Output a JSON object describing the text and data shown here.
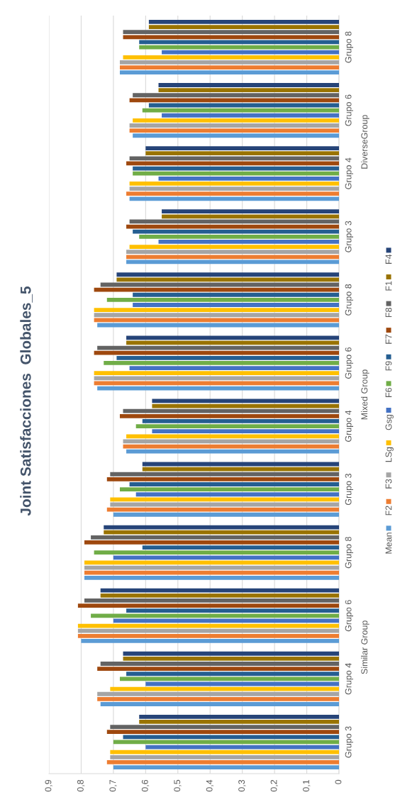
{
  "chart_data": {
    "type": "bar",
    "orientation": "horizontal",
    "title": "Joint Satisfacciones  Globales_5",
    "categories": [
      "Grupo 8",
      "Grupo 6",
      "Grupo 4",
      "Grupo 3",
      "Grupo 8",
      "Grupo 6",
      "Grupo 4",
      "Grupo 3",
      "Grupo 8",
      "Grupo 6",
      "Grupo 4",
      "Grupo 3"
    ],
    "annotations": [
      "DiverseGroup",
      "Mixed Group",
      "Similar Group"
    ],
    "series": [
      {
        "name": "Mean",
        "color": "#5b9bd5",
        "values": [
          0.68,
          0.64,
          0.65,
          0.66,
          0.75,
          0.75,
          0.66,
          0.7,
          0.79,
          0.8,
          0.74,
          0.7
        ]
      },
      {
        "name": "F2",
        "color": "#ed7d31",
        "values": [
          0.68,
          0.65,
          0.66,
          0.66,
          0.76,
          0.76,
          0.67,
          0.72,
          0.79,
          0.81,
          0.75,
          0.72
        ]
      },
      {
        "name": "F3",
        "color": "#a5a5a5",
        "values": [
          0.68,
          0.65,
          0.65,
          0.66,
          0.76,
          0.76,
          0.67,
          0.71,
          0.79,
          0.81,
          0.75,
          0.71
        ]
      },
      {
        "name": "LSg",
        "color": "#ffc000",
        "values": [
          0.67,
          0.64,
          0.65,
          0.65,
          0.76,
          0.76,
          0.66,
          0.71,
          0.79,
          0.81,
          0.71,
          0.71
        ]
      },
      {
        "name": "Gsg",
        "color": "#4472c4",
        "values": [
          0.55,
          0.55,
          0.56,
          0.56,
          0.64,
          0.65,
          0.58,
          0.63,
          0.7,
          0.7,
          0.6,
          0.6
        ]
      },
      {
        "name": "F6",
        "color": "#70ad47",
        "values": [
          0.62,
          0.61,
          0.64,
          0.62,
          0.72,
          0.73,
          0.63,
          0.68,
          0.76,
          0.77,
          0.68,
          0.7
        ]
      },
      {
        "name": "F9",
        "color": "#255e91",
        "values": [
          0.62,
          0.59,
          0.64,
          0.64,
          0.64,
          0.69,
          0.61,
          0.65,
          0.61,
          0.66,
          0.66,
          0.67
        ]
      },
      {
        "name": "F7",
        "color": "#9e480e",
        "values": [
          0.67,
          0.65,
          0.66,
          0.66,
          0.76,
          0.76,
          0.68,
          0.72,
          0.79,
          0.81,
          0.75,
          0.72
        ]
      },
      {
        "name": "F8",
        "color": "#636363",
        "values": [
          0.67,
          0.64,
          0.65,
          0.65,
          0.74,
          0.75,
          0.67,
          0.71,
          0.77,
          0.79,
          0.74,
          0.71
        ]
      },
      {
        "name": "F1",
        "color": "#997300",
        "values": [
          0.59,
          0.56,
          0.6,
          0.55,
          0.69,
          0.66,
          0.58,
          0.61,
          0.73,
          0.74,
          0.67,
          0.62
        ]
      },
      {
        "name": "F4",
        "color": "#264478",
        "values": [
          0.59,
          0.56,
          0.6,
          0.55,
          0.69,
          0.66,
          0.58,
          0.61,
          0.73,
          0.74,
          0.67,
          0.62
        ]
      }
    ],
    "xlim": [
      0.9,
      0
    ],
    "xticks": [
      0,
      {
        "value": 0.1,
        "label": "0,1"
      },
      {
        "value": 0.2,
        "label": "0,2"
      },
      {
        "value": 0.3,
        "label": "0,3"
      },
      {
        "value": 0.4,
        "label": "0,4"
      },
      {
        "value": 0.5,
        "label": "0,5"
      },
      {
        "value": 0.6,
        "label": "0,6"
      },
      {
        "value": 0.7,
        "label": "0,7"
      },
      {
        "value": 0.8,
        "label": "0,8"
      },
      {
        "value": 0.9,
        "label": "0,9"
      }
    ],
    "grid": "x",
    "legend": "right"
  }
}
